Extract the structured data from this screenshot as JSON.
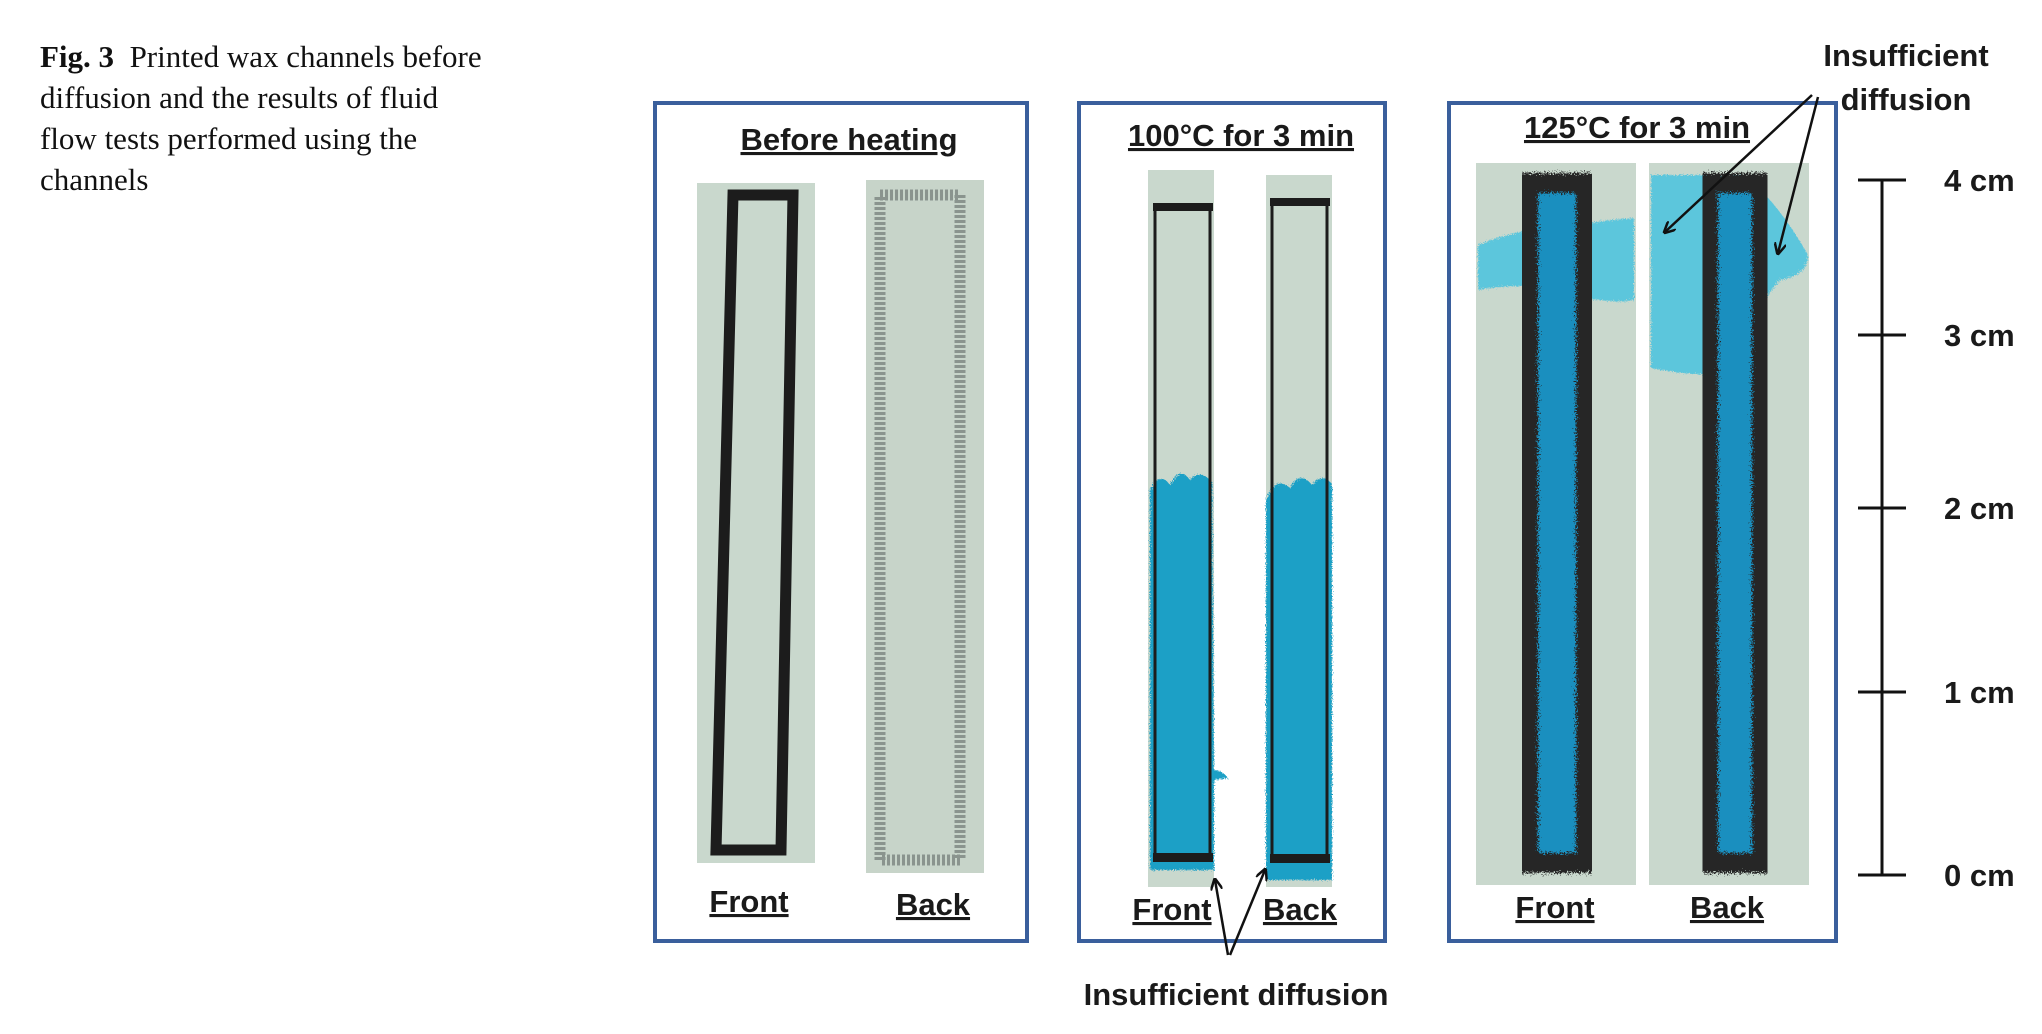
{
  "caption": {
    "label": "Fig. 3",
    "text": "Printed wax channels before diffusion and the results of fluid flow tests performed using the channels"
  },
  "panels": [
    {
      "title": "Before heating",
      "front_label": "Front",
      "back_label": "Back"
    },
    {
      "title": "100°C for 3 min",
      "front_label": "Front",
      "back_label": "Back"
    },
    {
      "title": "125°C for 3 min",
      "front_label": "Front",
      "back_label": "Back"
    }
  ],
  "annotations": {
    "bottom": "Insufficient diffusion",
    "top_line1": "Insufficient",
    "top_line2": "diffusion"
  },
  "scale": {
    "ticks": [
      "4 cm",
      "3 cm",
      "2 cm",
      "1 cm",
      "0 cm"
    ]
  },
  "colors": {
    "frame": "#3a5f9c",
    "paper": "#c9d8cd",
    "wax": "#1c1c1c",
    "dye": "#1aa0c6",
    "dye_light": "#5cc6dc"
  }
}
